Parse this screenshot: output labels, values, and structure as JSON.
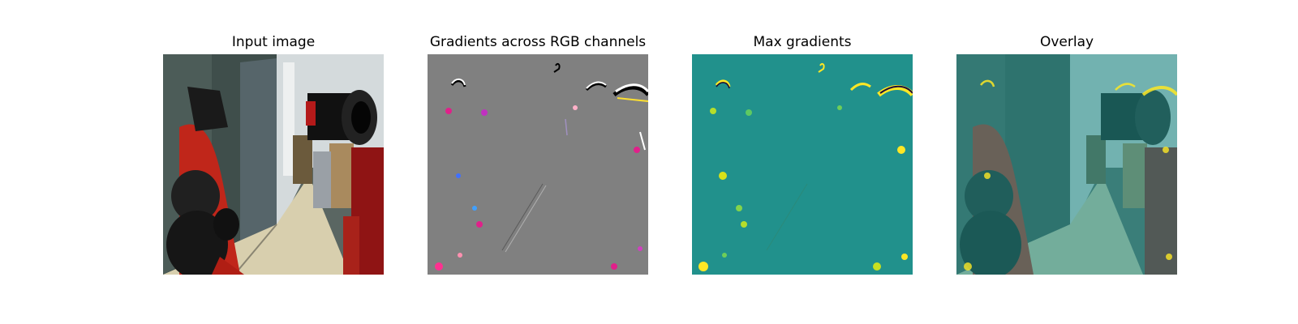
{
  "figure": {
    "panels": [
      {
        "id": "input",
        "title": "Input image"
      },
      {
        "id": "rgb-grad",
        "title": "Gradients across RGB channels"
      },
      {
        "id": "max-grad",
        "title": "Max gradients"
      },
      {
        "id": "overlay",
        "title": "Overlay"
      }
    ],
    "colors": {
      "background": "#ffffff",
      "gradient_gray": "#808080",
      "viridis_mid": "#21918c",
      "viridis_high": "#fde725",
      "robot_red": "#c0261a",
      "floor": "#d8cfae"
    }
  }
}
